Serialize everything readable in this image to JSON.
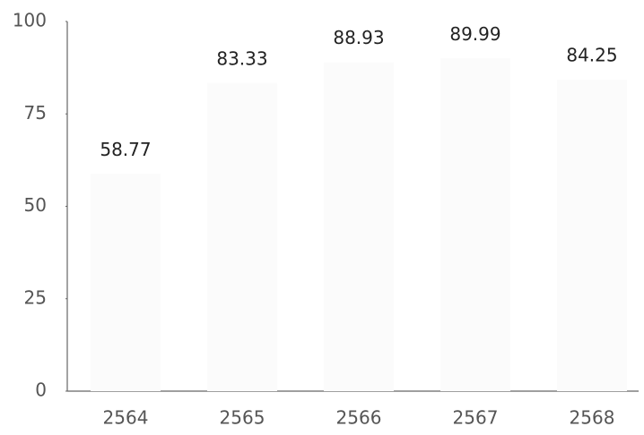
{
  "chart_data": {
    "type": "bar",
    "categories": [
      "2564",
      "2565",
      "2566",
      "2567",
      "2568"
    ],
    "values": [
      58.77,
      83.33,
      88.93,
      89.99,
      84.25
    ],
    "color": "#fbfbfb",
    "ylim": [
      0,
      100
    ],
    "yticks": [
      0,
      25,
      50,
      75,
      100
    ],
    "grid": false
  }
}
